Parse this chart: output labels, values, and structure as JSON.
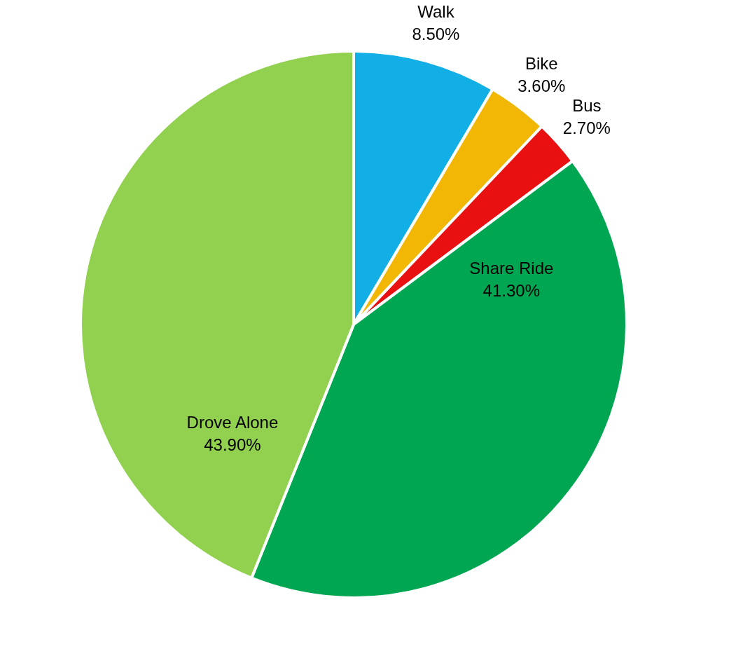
{
  "chart_data": {
    "type": "pie",
    "categories": [
      "Walk",
      "Bike",
      "Bus",
      "Share Ride",
      "Drove Alone"
    ],
    "values": [
      8.5,
      3.6,
      2.7,
      41.3,
      43.9
    ],
    "value_labels": [
      "8.50%",
      "3.60%",
      "2.70%",
      "41.30%",
      "43.90%"
    ],
    "colors": [
      "#12aee6",
      "#f2b705",
      "#e81010",
      "#00a651",
      "#92d050"
    ],
    "legend": false
  }
}
